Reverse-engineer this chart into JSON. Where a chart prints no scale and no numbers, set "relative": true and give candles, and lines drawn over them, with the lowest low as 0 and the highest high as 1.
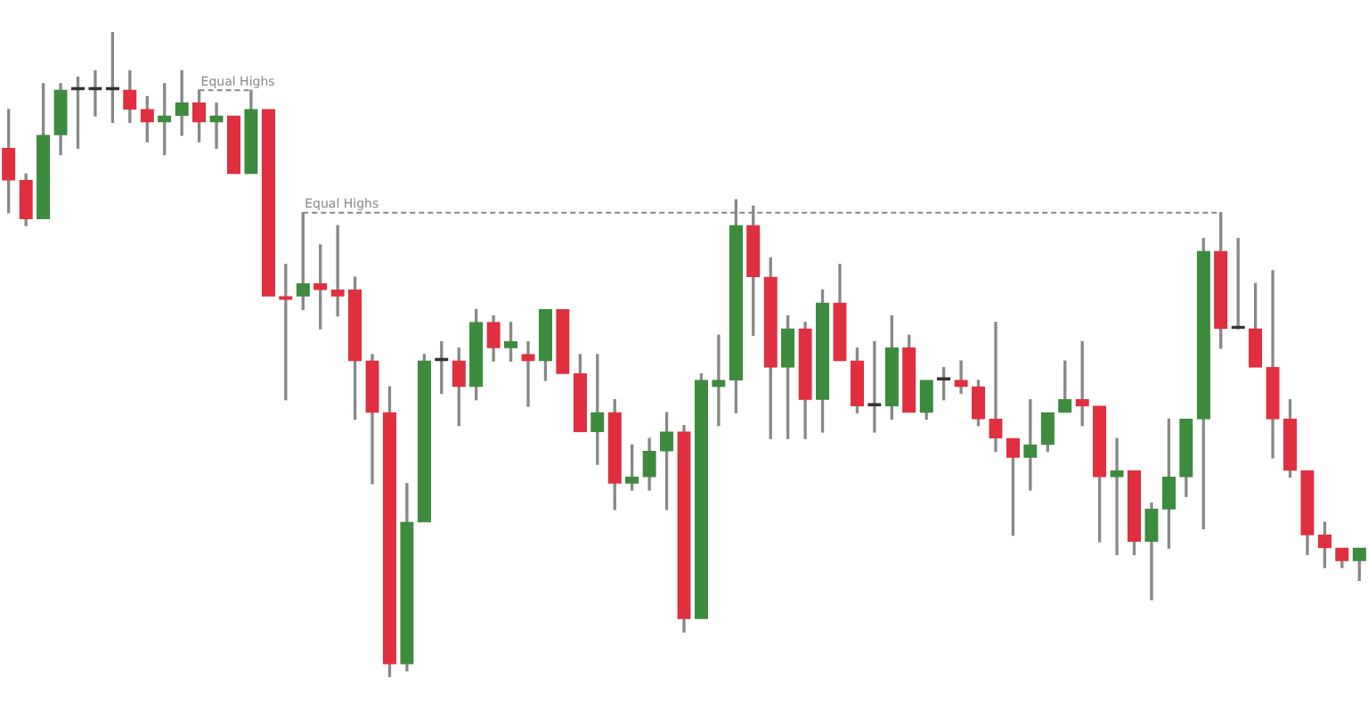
{
  "chart_data": {
    "type": "candlestick",
    "relative": true,
    "categories": [
      null,
      null,
      null,
      null,
      null,
      null,
      null,
      null,
      null,
      null,
      null,
      null,
      null,
      null,
      null,
      null,
      null,
      null,
      null,
      null,
      null,
      null,
      null,
      null,
      null,
      null,
      null,
      null,
      null,
      null,
      null,
      null,
      null,
      null,
      null,
      null,
      null,
      null,
      null,
      null,
      null,
      null,
      null,
      null,
      null,
      null,
      null,
      null,
      null,
      null,
      null,
      null,
      null,
      null,
      null,
      null,
      null,
      null,
      null,
      null,
      null,
      null,
      null,
      null,
      null,
      null,
      null,
      null,
      null,
      null,
      null,
      null,
      null,
      null,
      null,
      null,
      null,
      null,
      null
    ],
    "ohlc": [
      [
        0.82,
        0.88,
        0.72,
        0.77
      ],
      [
        0.77,
        0.78,
        0.7,
        0.71
      ],
      [
        0.71,
        0.92,
        0.71,
        0.84
      ],
      [
        0.84,
        0.92,
        0.81,
        0.91
      ],
      [
        0.91,
        0.93,
        0.82,
        0.91
      ],
      [
        0.91,
        0.94,
        0.87,
        0.91
      ],
      [
        0.91,
        1,
        0.86,
        0.91
      ],
      [
        0.91,
        0.94,
        0.86,
        0.88
      ],
      [
        0.88,
        0.9,
        0.83,
        0.86
      ],
      [
        0.86,
        0.92,
        0.81,
        0.87
      ],
      [
        0.87,
        0.94,
        0.84,
        0.89
      ],
      [
        0.89,
        0.91,
        0.83,
        0.86
      ],
      [
        0.86,
        0.89,
        0.82,
        0.87
      ],
      [
        0.87,
        0.87,
        0.78,
        0.78
      ],
      [
        0.78,
        0.91,
        0.78,
        0.88
      ],
      [
        0.88,
        0.88,
        0.59,
        0.59
      ],
      [
        0.59,
        0.64,
        0.43,
        0.585
      ],
      [
        0.59,
        0.72,
        0.57,
        0.61
      ],
      [
        0.61,
        0.67,
        0.54,
        0.6
      ],
      [
        0.6,
        0.7,
        0.56,
        0.59
      ],
      [
        0.6,
        0.62,
        0.4,
        0.49
      ],
      [
        0.49,
        0.5,
        0.3,
        0.41
      ],
      [
        0.41,
        0.45,
        0,
        0.02
      ],
      [
        0.02,
        0.3,
        0.01,
        0.24
      ],
      [
        0.24,
        0.5,
        0.24,
        0.49
      ],
      [
        0.49,
        0.52,
        0.44,
        0.49
      ],
      [
        0.49,
        0.51,
        0.39,
        0.45
      ],
      [
        0.45,
        0.57,
        0.43,
        0.55
      ],
      [
        0.55,
        0.56,
        0.49,
        0.51
      ],
      [
        0.51,
        0.55,
        0.49,
        0.52
      ],
      [
        0.5,
        0.52,
        0.42,
        0.49
      ],
      [
        0.49,
        0.57,
        0.46,
        0.57
      ],
      [
        0.57,
        0.57,
        0.47,
        0.47
      ],
      [
        0.47,
        0.5,
        0.38,
        0.38
      ],
      [
        0.38,
        0.5,
        0.33,
        0.41
      ],
      [
        0.41,
        0.43,
        0.26,
        0.3
      ],
      [
        0.3,
        0.36,
        0.29,
        0.31
      ],
      [
        0.31,
        0.37,
        0.29,
        0.35
      ],
      [
        0.35,
        0.41,
        0.26,
        0.38
      ],
      [
        0.38,
        0.39,
        0.07,
        0.09
      ],
      [
        0.09,
        0.47,
        0.09,
        0.46
      ],
      [
        0.45,
        0.53,
        0.39,
        0.46
      ],
      [
        0.46,
        0.74,
        0.41,
        0.7
      ],
      [
        0.7,
        0.73,
        0.53,
        0.62
      ],
      [
        0.62,
        0.65,
        0.37,
        0.48
      ],
      [
        0.48,
        0.56,
        0.37,
        0.54
      ],
      [
        0.54,
        0.55,
        0.37,
        0.43
      ],
      [
        0.43,
        0.6,
        0.38,
        0.58
      ],
      [
        0.58,
        0.64,
        0.49,
        0.49
      ],
      [
        0.49,
        0.51,
        0.41,
        0.42
      ],
      [
        0.42,
        0.52,
        0.38,
        0.42
      ],
      [
        0.42,
        0.56,
        0.4,
        0.51
      ],
      [
        0.51,
        0.53,
        0.41,
        0.41
      ],
      [
        0.41,
        0.46,
        0.4,
        0.46
      ],
      [
        0.46,
        0.48,
        0.43,
        0.46
      ],
      [
        0.46,
        0.49,
        0.44,
        0.45
      ],
      [
        0.45,
        0.46,
        0.39,
        0.4
      ],
      [
        0.4,
        0.55,
        0.35,
        0.37
      ],
      [
        0.37,
        0.37,
        0.22,
        0.34
      ],
      [
        0.34,
        0.43,
        0.29,
        0.36
      ],
      [
        0.36,
        0.41,
        0.35,
        0.41
      ],
      [
        0.41,
        0.49,
        0.41,
        0.43
      ],
      [
        0.43,
        0.52,
        0.39,
        0.42
      ],
      [
        0.42,
        0.42,
        0.21,
        0.31
      ],
      [
        0.31,
        0.37,
        0.19,
        0.32
      ],
      [
        0.32,
        0.32,
        0.19,
        0.21
      ],
      [
        0.21,
        0.27,
        0.12,
        0.26
      ],
      [
        0.26,
        0.4,
        0.2,
        0.31
      ],
      [
        0.31,
        0.4,
        0.28,
        0.4
      ],
      [
        0.4,
        0.68,
        0.23,
        0.66
      ],
      [
        0.66,
        0.72,
        0.51,
        0.54
      ],
      [
        0.54,
        0.68,
        0.54,
        0.54
      ],
      [
        0.54,
        0.61,
        0.48,
        0.48
      ],
      [
        0.48,
        0.63,
        0.34,
        0.4
      ],
      [
        0.4,
        0.43,
        0.31,
        0.32
      ],
      [
        0.32,
        0.32,
        0.19,
        0.22
      ],
      [
        0.22,
        0.24,
        0.17,
        0.2
      ],
      [
        0.2,
        0.2,
        0.17,
        0.18
      ],
      [
        0.18,
        0.2,
        0.15,
        0.2
      ]
    ],
    "colors": [
      "#e0303f",
      "#e0303f",
      "#3d8b3d",
      "#3d8b3d",
      "#333333",
      "#333333",
      "#333333",
      "#e0303f",
      "#e0303f",
      "#3d8b3d",
      "#3d8b3d",
      "#e0303f",
      "#3d8b3d",
      "#e0303f",
      "#3d8b3d",
      "#e0303f",
      "#e0303f",
      "#3d8b3d",
      "#e0303f",
      "#e0303f",
      "#e0303f",
      "#e0303f",
      "#e0303f",
      "#3d8b3d",
      "#3d8b3d",
      "#333333",
      "#e0303f",
      "#3d8b3d",
      "#e0303f",
      "#3d8b3d",
      "#e0303f",
      "#3d8b3d",
      "#e0303f",
      "#e0303f",
      "#3d8b3d",
      "#e0303f",
      "#3d8b3d",
      "#3d8b3d",
      "#3d8b3d",
      "#e0303f",
      "#3d8b3d",
      "#3d8b3d",
      "#3d8b3d",
      "#e0303f",
      "#e0303f",
      "#3d8b3d",
      "#e0303f",
      "#3d8b3d",
      "#e0303f",
      "#e0303f",
      "#333333",
      "#3d8b3d",
      "#e0303f",
      "#3d8b3d",
      "#333333",
      "#e0303f",
      "#e0303f",
      "#e0303f",
      "#e0303f",
      "#3d8b3d",
      "#3d8b3d",
      "#3d8b3d",
      "#e0303f",
      "#e0303f",
      "#3d8b3d",
      "#e0303f",
      "#3d8b3d",
      "#3d8b3d",
      "#3d8b3d",
      "#3d8b3d",
      "#e0303f",
      "#333333",
      "#e0303f",
      "#e0303f",
      "#e0303f",
      "#e0303f",
      "#e0303f",
      "#e0303f",
      "#3d8b3d"
    ],
    "ref_lines": [
      {
        "axis": "y",
        "value": 0.91,
        "label": "Equal Highs",
        "color": "#888888",
        "line_style": "dashed"
      },
      {
        "axis": "y",
        "value": 0.72,
        "label": "Equal Highs",
        "color": "#888888",
        "line_style": "dashed"
      }
    ]
  }
}
